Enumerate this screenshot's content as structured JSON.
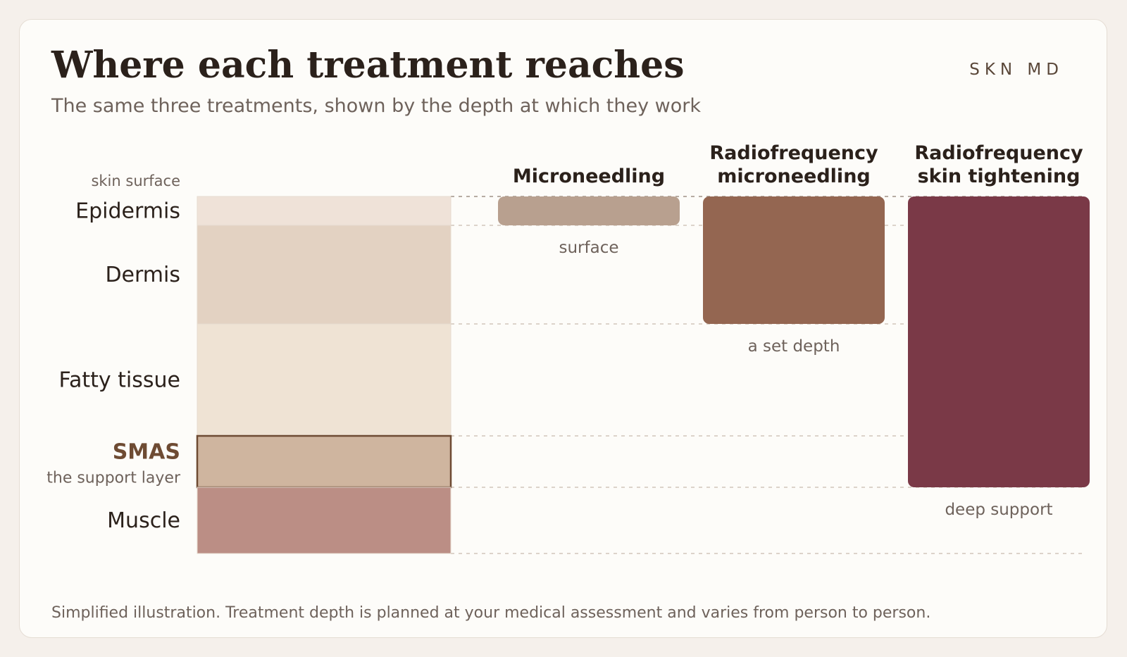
{
  "header": {
    "title": "Where each treatment reaches",
    "subtitle": "The same three treatments, shown by the depth at which they work",
    "brand": "SKN MD"
  },
  "diagram": {
    "surface_label": "skin surface",
    "layers": [
      {
        "name": "Epidermis",
        "color": "#efe2d8"
      },
      {
        "name": "Dermis",
        "color": "#e3d2c2"
      },
      {
        "name": "Fatty tissue",
        "color": "#efe3d4"
      },
      {
        "name": "SMAS",
        "sub_label": "the support layer",
        "color": "#cfb59f",
        "highlight": true,
        "label_color": "#6e4b33"
      },
      {
        "name": "Muscle",
        "color": "#bb8e85"
      }
    ],
    "treatments": [
      {
        "name": [
          "Microneedling"
        ],
        "reach_label": "surface",
        "reaches_to_layer": "Epidermis",
        "color": "#b8a08f"
      },
      {
        "name": [
          "Radiofrequency",
          "microneedling"
        ],
        "reach_label": "a set depth",
        "reaches_to_layer": "Dermis",
        "color": "#946651"
      },
      {
        "name": [
          "Radiofrequency",
          "skin tightening"
        ],
        "reach_label": "deep support",
        "reaches_to_layer": "SMAS",
        "color": "#7a3947"
      }
    ]
  },
  "footer": {
    "note": "Simplified illustration. Treatment depth is planned at your medical assessment and varies from person to person."
  }
}
